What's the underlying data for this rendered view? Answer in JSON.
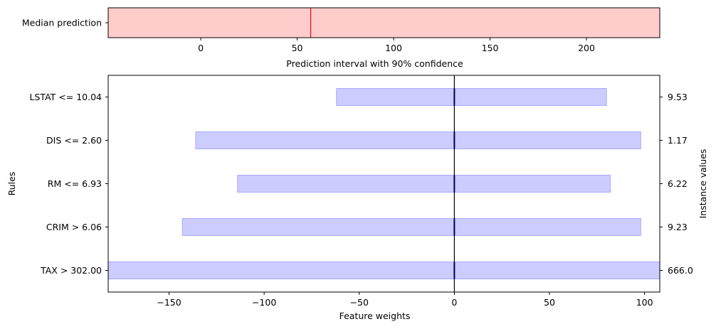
{
  "chart_data": [
    {
      "type": "interval",
      "ytick_labels": [
        "Median prediction"
      ],
      "xlabel": "Prediction interval with 90% confidence",
      "xlim": [
        -48,
        238
      ],
      "xticks": [
        0,
        50,
        100,
        150,
        200
      ],
      "interval": [
        -48,
        238
      ],
      "median": 57,
      "colors": {
        "interval_fill": "#ffcccc",
        "median_line": "#ff0000"
      }
    },
    {
      "type": "bar",
      "orientation": "horizontal",
      "categories": [
        "LSTAT <= 10.04",
        "DIS <= 2.60",
        "RM <= 6.93",
        "CRIM > 6.06",
        "TAX > 302.00"
      ],
      "low": [
        -62,
        -136,
        -114,
        -143,
        -182
      ],
      "high": [
        80,
        98,
        82,
        98,
        108
      ],
      "weights": [
        0,
        0,
        0,
        0,
        0
      ],
      "instance_values": [
        "9.53",
        "1.17",
        "6.22",
        "9.23",
        "666.0"
      ],
      "xlabel": "Feature weights",
      "ylabel": "Rules",
      "ylabel_right": "Instance values",
      "xlim": [
        -182,
        108
      ],
      "xticks": [
        -150,
        -100,
        -50,
        0,
        50,
        100
      ],
      "xtick_labels": [
        "−150",
        "−100",
        "−50",
        "0",
        "50",
        "100"
      ],
      "colors": {
        "bar_fill": "#ccccff",
        "bar_edge": "#aaaaff",
        "weight_line": "#0000ff",
        "zero_line": "#000000"
      }
    }
  ]
}
